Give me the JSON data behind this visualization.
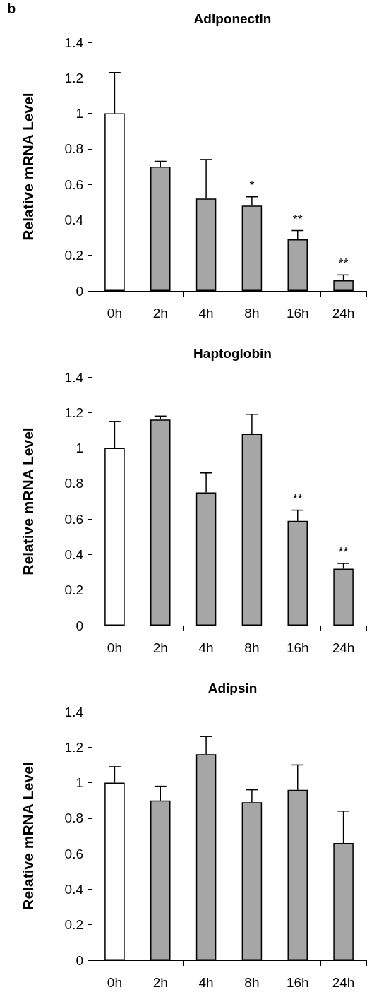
{
  "chart_data": [
    {
      "type": "bar",
      "title": "Adiponectin",
      "ylabel": "Relative mRNA Level",
      "categories": [
        "0h",
        "2h",
        "4h",
        "8h",
        "16h",
        "24h"
      ],
      "values": [
        1.0,
        0.7,
        0.52,
        0.48,
        0.29,
        0.06
      ],
      "colors": [
        "#ffffff",
        "#a6a6a6",
        "#a6a6a6",
        "#a6a6a6",
        "#a6a6a6",
        "#a6a6a6"
      ],
      "errors": [
        [
          1.0,
          1.23
        ],
        [
          0.7,
          0.73
        ],
        [
          0.52,
          0.74
        ],
        [
          0.48,
          0.53
        ],
        [
          0.29,
          0.34
        ],
        [
          0.06,
          0.09
        ]
      ],
      "ylim": [
        0,
        1.4
      ],
      "yticks": [
        0,
        0.2,
        0.4,
        0.6,
        0.8,
        1,
        1.2,
        1.4
      ],
      "grid": false,
      "annotations": [
        "b",
        {
          "text": "*",
          "x": "8h",
          "y": 0.53
        },
        {
          "text": "**",
          "x": "16h",
          "y": 0.34
        },
        {
          "text": "**",
          "x": "24h",
          "y": 0.09
        }
      ]
    },
    {
      "type": "bar",
      "title": "Haptoglobin",
      "ylabel": "Relative mRNA Level",
      "categories": [
        "0h",
        "2h",
        "4h",
        "8h",
        "16h",
        "24h"
      ],
      "values": [
        1.0,
        1.16,
        0.75,
        1.08,
        0.59,
        0.32
      ],
      "colors": [
        "#ffffff",
        "#a6a6a6",
        "#a6a6a6",
        "#a6a6a6",
        "#a6a6a6",
        "#a6a6a6"
      ],
      "errors": [
        [
          1.0,
          1.15
        ],
        [
          1.16,
          1.18
        ],
        [
          0.75,
          0.86
        ],
        [
          1.08,
          1.19
        ],
        [
          0.59,
          0.65
        ],
        [
          0.32,
          0.35
        ]
      ],
      "ylim": [
        0,
        1.4
      ],
      "yticks": [
        0,
        0.2,
        0.4,
        0.6,
        0.8,
        1,
        1.2,
        1.4
      ],
      "grid": false,
      "annotations": [
        {
          "text": "**",
          "x": "16h",
          "y": 0.65
        },
        {
          "text": "**",
          "x": "24h",
          "y": 0.35
        }
      ]
    },
    {
      "type": "bar",
      "title": "Adipsin",
      "ylabel": "Relative mRNA Level",
      "categories": [
        "0h",
        "2h",
        "4h",
        "8h",
        "16h",
        "24h"
      ],
      "values": [
        1.0,
        0.9,
        1.16,
        0.89,
        0.96,
        0.66
      ],
      "colors": [
        "#ffffff",
        "#a6a6a6",
        "#a6a6a6",
        "#a6a6a6",
        "#a6a6a6",
        "#a6a6a6"
      ],
      "errors": [
        [
          1.0,
          1.09
        ],
        [
          0.9,
          0.98
        ],
        [
          1.16,
          1.26
        ],
        [
          0.89,
          0.96
        ],
        [
          0.96,
          1.1
        ],
        [
          0.66,
          0.84
        ]
      ],
      "ylim": [
        0,
        1.4
      ],
      "yticks": [
        0,
        0.2,
        0.4,
        0.6,
        0.8,
        1,
        1.2,
        1.4
      ],
      "grid": false
    }
  ]
}
